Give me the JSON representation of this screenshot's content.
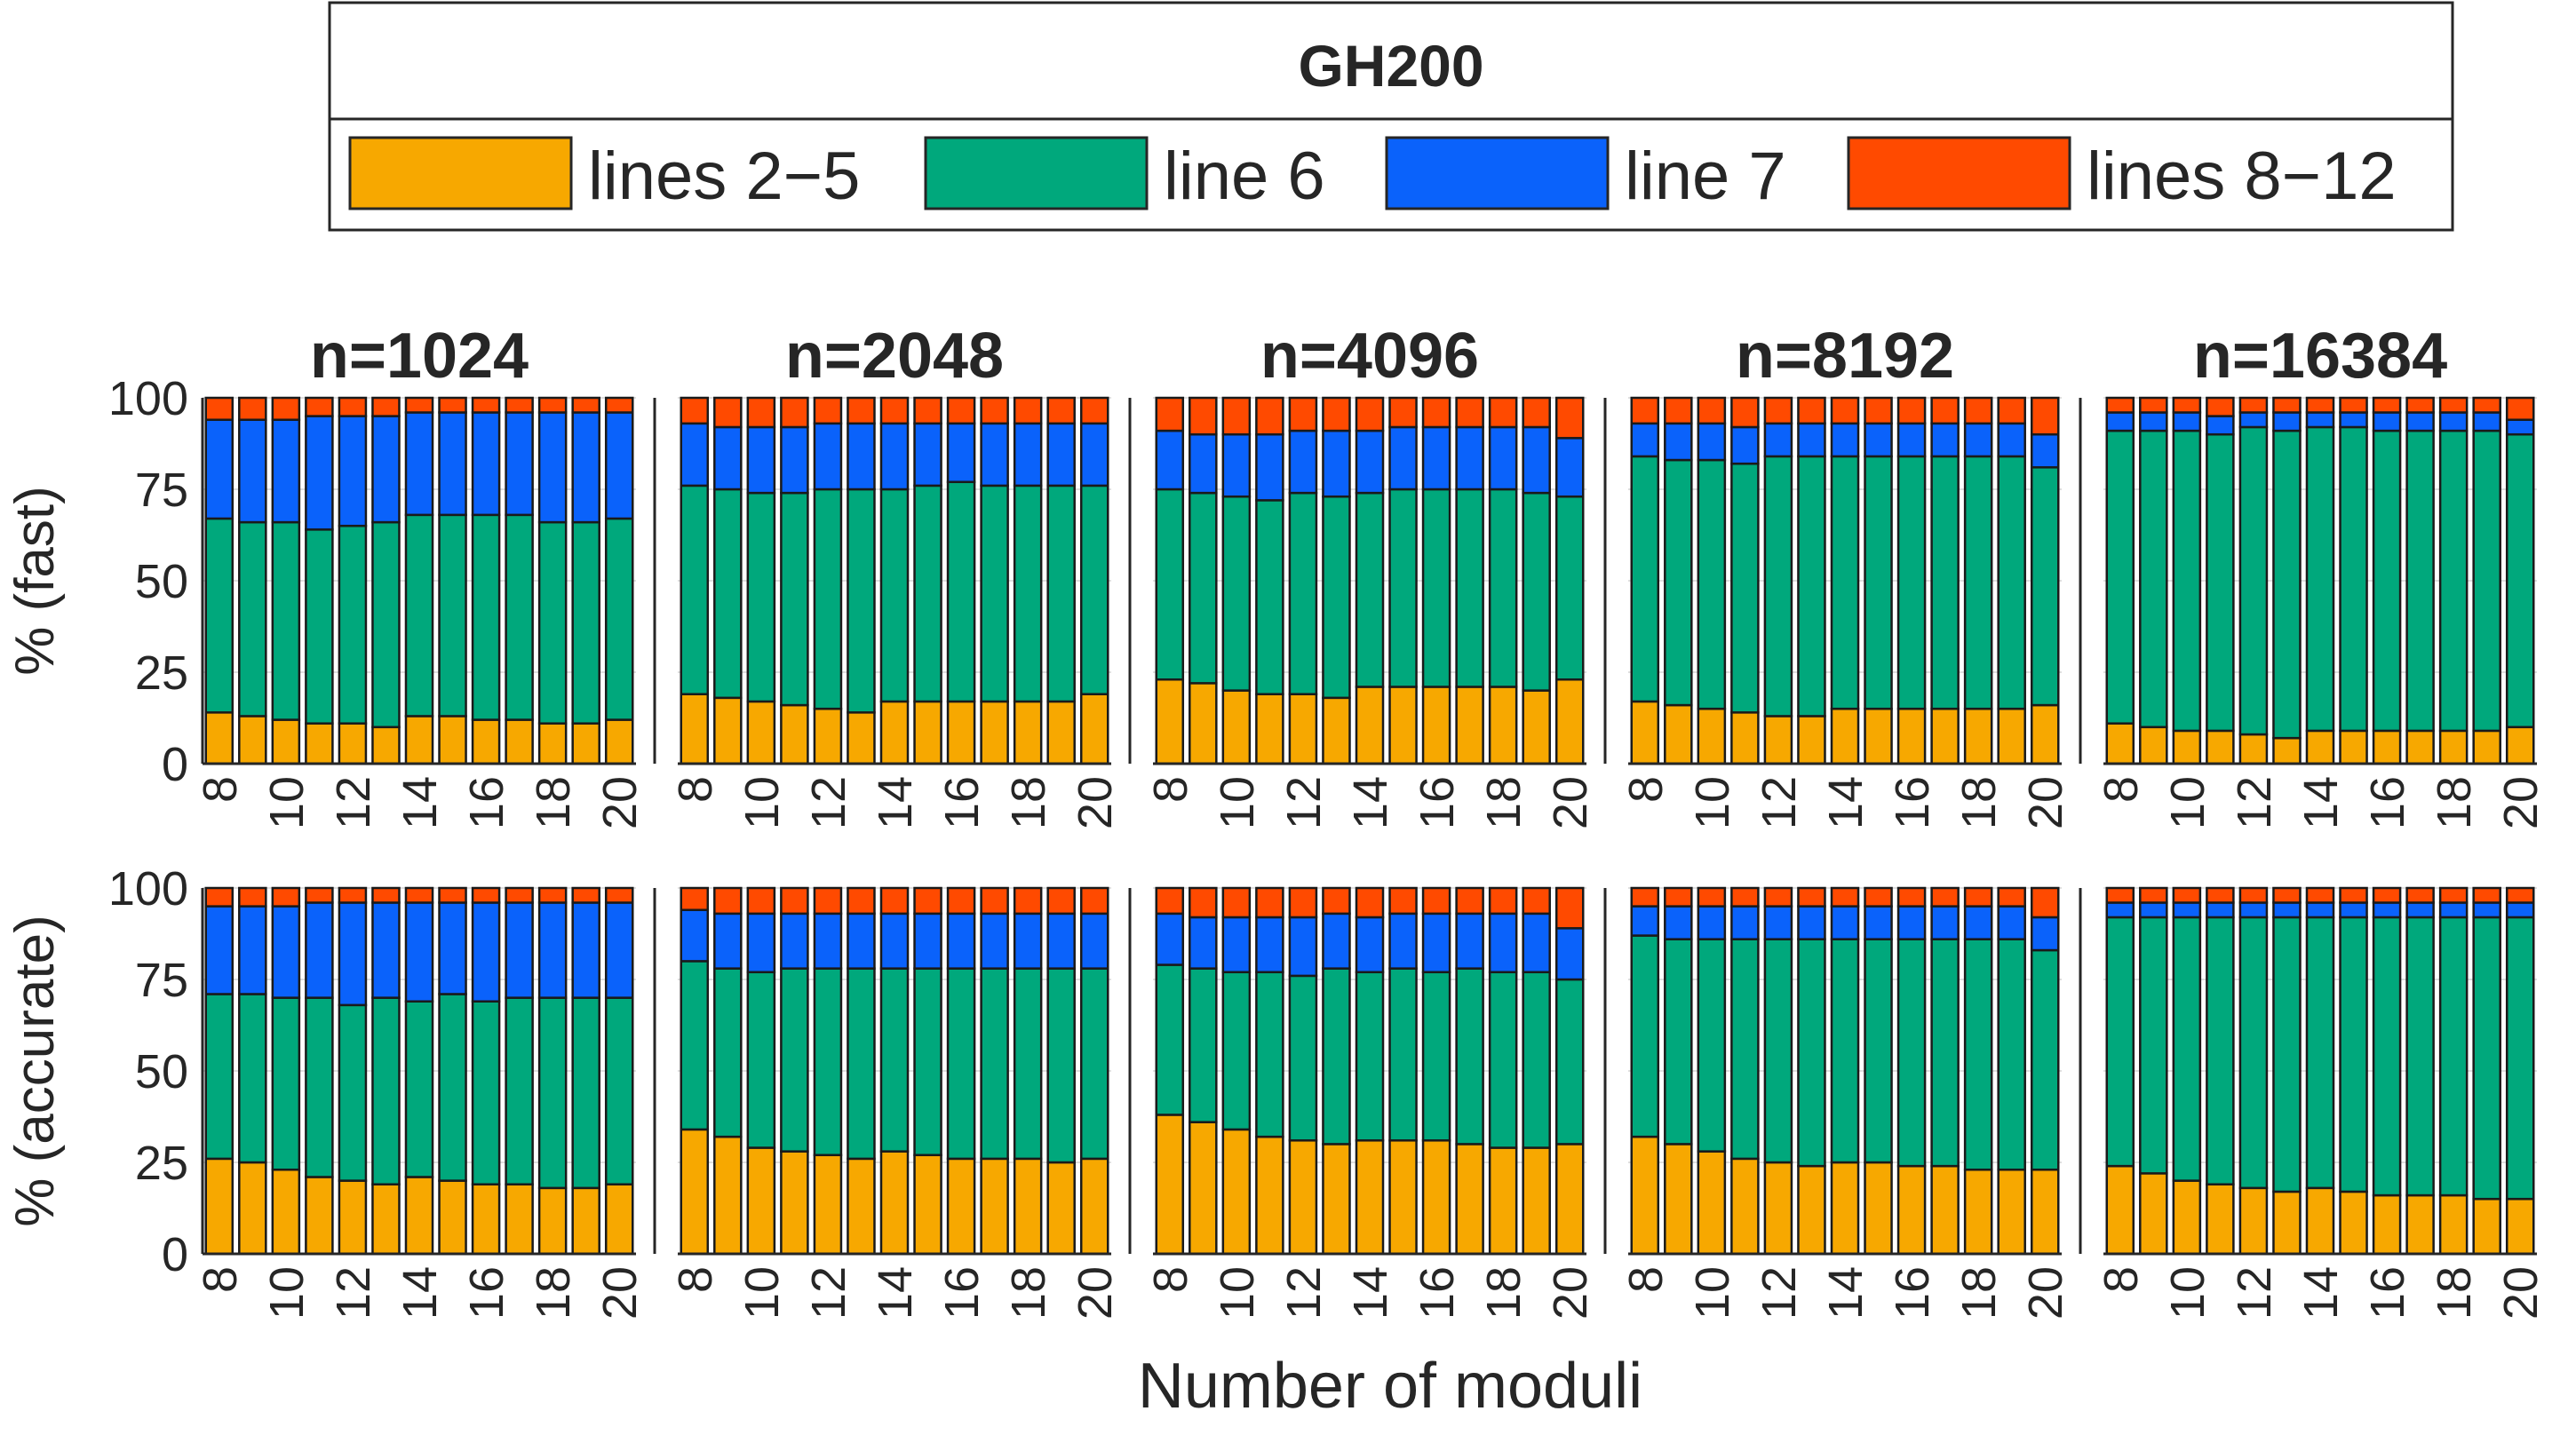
{
  "chart_data": {
    "type": "bar",
    "stacked": true,
    "title": "GH200",
    "legend": {
      "placement": "top",
      "entries": [
        {
          "label": "lines 2−5",
          "color": "#F7A800"
        },
        {
          "label": "line 6",
          "color": "#00A87C"
        },
        {
          "label": "line 7",
          "color": "#0A62FB"
        },
        {
          "label": "lines 8−12",
          "color": "#FF4A00"
        }
      ]
    },
    "xlabel": "Number of moduli",
    "rows": [
      {
        "ylabel": "% (fast)"
      },
      {
        "ylabel": "% (accurate)"
      }
    ],
    "columns": [
      {
        "title": "n=1024"
      },
      {
        "title": "n=2048"
      },
      {
        "title": "n=4096"
      },
      {
        "title": "n=8192"
      },
      {
        "title": "n=16384"
      }
    ],
    "categories": [
      8,
      9,
      10,
      11,
      12,
      13,
      14,
      15,
      16,
      17,
      18,
      19,
      20
    ],
    "xtick_labels": [
      "8",
      "10",
      "12",
      "14",
      "16",
      "18",
      "20"
    ],
    "ylim": [
      0,
      100
    ],
    "yticks": [
      0,
      25,
      50,
      75,
      100
    ],
    "grid": true,
    "series_colors": [
      "#F7A800",
      "#00A87C",
      "#0A62FB",
      "#FF4A00"
    ],
    "panels": [
      [
        {
          "series": [
            {
              "name": "lines 2−5",
              "values": [
                14,
                13,
                12,
                11,
                11,
                10,
                13,
                13,
                12,
                12,
                11,
                11,
                12
              ]
            },
            {
              "name": "line 6",
              "values": [
                53,
                53,
                54,
                53,
                54,
                56,
                55,
                55,
                56,
                56,
                55,
                55,
                55
              ]
            },
            {
              "name": "line 7",
              "values": [
                27,
                28,
                28,
                31,
                30,
                29,
                28,
                28,
                28,
                28,
                30,
                30,
                29
              ]
            },
            {
              "name": "lines 8−12",
              "values": [
                6,
                6,
                6,
                5,
                5,
                5,
                4,
                4,
                4,
                4,
                4,
                4,
                4
              ]
            }
          ]
        },
        {
          "series": [
            {
              "name": "lines 2−5",
              "values": [
                19,
                18,
                17,
                16,
                15,
                14,
                17,
                17,
                17,
                17,
                17,
                17,
                19
              ]
            },
            {
              "name": "line 6",
              "values": [
                57,
                57,
                57,
                58,
                60,
                61,
                58,
                59,
                60,
                59,
                59,
                59,
                57
              ]
            },
            {
              "name": "line 7",
              "values": [
                17,
                17,
                18,
                18,
                18,
                18,
                18,
                17,
                16,
                17,
                17,
                17,
                17
              ]
            },
            {
              "name": "lines 8−12",
              "values": [
                7,
                8,
                8,
                8,
                7,
                7,
                7,
                7,
                7,
                7,
                7,
                7,
                7
              ]
            }
          ]
        },
        {
          "series": [
            {
              "name": "lines 2−5",
              "values": [
                23,
                22,
                20,
                19,
                19,
                18,
                21,
                21,
                21,
                21,
                21,
                20,
                23
              ]
            },
            {
              "name": "line 6",
              "values": [
                52,
                52,
                53,
                53,
                55,
                55,
                53,
                54,
                54,
                54,
                54,
                54,
                50
              ]
            },
            {
              "name": "line 7",
              "values": [
                16,
                16,
                17,
                18,
                17,
                18,
                17,
                17,
                17,
                17,
                17,
                18,
                16
              ]
            },
            {
              "name": "lines 8−12",
              "values": [
                9,
                10,
                10,
                10,
                9,
                9,
                9,
                8,
                8,
                8,
                8,
                8,
                11
              ]
            }
          ]
        },
        {
          "series": [
            {
              "name": "lines 2−5",
              "values": [
                17,
                16,
                15,
                14,
                13,
                13,
                15,
                15,
                15,
                15,
                15,
                15,
                16
              ]
            },
            {
              "name": "line 6",
              "values": [
                67,
                67,
                68,
                68,
                71,
                71,
                69,
                69,
                69,
                69,
                69,
                69,
                65
              ]
            },
            {
              "name": "line 7",
              "values": [
                9,
                10,
                10,
                10,
                9,
                9,
                9,
                9,
                9,
                9,
                9,
                9,
                9
              ]
            },
            {
              "name": "lines 8−12",
              "values": [
                7,
                7,
                7,
                8,
                7,
                7,
                7,
                7,
                7,
                7,
                7,
                7,
                10
              ]
            }
          ]
        },
        {
          "series": [
            {
              "name": "lines 2−5",
              "values": [
                11,
                10,
                9,
                9,
                8,
                7,
                9,
                9,
                9,
                9,
                9,
                9,
                10
              ]
            },
            {
              "name": "line 6",
              "values": [
                80,
                81,
                82,
                81,
                84,
                84,
                83,
                83,
                82,
                82,
                82,
                82,
                80
              ]
            },
            {
              "name": "line 7",
              "values": [
                5,
                5,
                5,
                5,
                4,
                5,
                4,
                4,
                5,
                5,
                5,
                5,
                4
              ]
            },
            {
              "name": "lines 8−12",
              "values": [
                4,
                4,
                4,
                5,
                4,
                4,
                4,
                4,
                4,
                4,
                4,
                4,
                6
              ]
            }
          ]
        }
      ],
      [
        {
          "series": [
            {
              "name": "lines 2−5",
              "values": [
                26,
                25,
                23,
                21,
                20,
                19,
                21,
                20,
                19,
                19,
                18,
                18,
                19
              ]
            },
            {
              "name": "line 6",
              "values": [
                45,
                46,
                47,
                49,
                48,
                51,
                48,
                51,
                50,
                51,
                52,
                52,
                51
              ]
            },
            {
              "name": "line 7",
              "values": [
                24,
                24,
                25,
                26,
                28,
                26,
                27,
                25,
                27,
                26,
                26,
                26,
                26
              ]
            },
            {
              "name": "lines 8−12",
              "values": [
                5,
                5,
                5,
                4,
                4,
                4,
                4,
                4,
                4,
                4,
                4,
                4,
                4
              ]
            }
          ]
        },
        {
          "series": [
            {
              "name": "lines 2−5",
              "values": [
                34,
                32,
                29,
                28,
                27,
                26,
                28,
                27,
                26,
                26,
                26,
                25,
                26
              ]
            },
            {
              "name": "line 6",
              "values": [
                46,
                46,
                48,
                50,
                51,
                52,
                50,
                51,
                52,
                52,
                52,
                53,
                52
              ]
            },
            {
              "name": "line 7",
              "values": [
                14,
                15,
                16,
                15,
                15,
                15,
                15,
                15,
                15,
                15,
                15,
                15,
                15
              ]
            },
            {
              "name": "lines 8−12",
              "values": [
                6,
                7,
                7,
                7,
                7,
                7,
                7,
                7,
                7,
                7,
                7,
                7,
                7
              ]
            }
          ]
        },
        {
          "series": [
            {
              "name": "lines 2−5",
              "values": [
                38,
                36,
                34,
                32,
                31,
                30,
                31,
                31,
                31,
                30,
                29,
                29,
                30
              ]
            },
            {
              "name": "line 6",
              "values": [
                41,
                42,
                43,
                45,
                45,
                48,
                46,
                47,
                46,
                48,
                48,
                48,
                45
              ]
            },
            {
              "name": "line 7",
              "values": [
                14,
                14,
                15,
                15,
                16,
                15,
                15,
                15,
                16,
                15,
                16,
                16,
                14
              ]
            },
            {
              "name": "lines 8−12",
              "values": [
                7,
                8,
                8,
                8,
                8,
                7,
                8,
                7,
                7,
                7,
                7,
                7,
                11
              ]
            }
          ]
        },
        {
          "series": [
            {
              "name": "lines 2−5",
              "values": [
                32,
                30,
                28,
                26,
                25,
                24,
                25,
                25,
                24,
                24,
                23,
                23,
                23
              ]
            },
            {
              "name": "line 6",
              "values": [
                55,
                56,
                58,
                60,
                61,
                62,
                61,
                61,
                62,
                62,
                63,
                63,
                60
              ]
            },
            {
              "name": "line 7",
              "values": [
                8,
                9,
                9,
                9,
                9,
                9,
                9,
                9,
                9,
                9,
                9,
                9,
                9
              ]
            },
            {
              "name": "lines 8−12",
              "values": [
                5,
                5,
                5,
                5,
                5,
                5,
                5,
                5,
                5,
                5,
                5,
                5,
                8
              ]
            }
          ]
        },
        {
          "series": [
            {
              "name": "lines 2−5",
              "values": [
                24,
                22,
                20,
                19,
                18,
                17,
                18,
                17,
                16,
                16,
                16,
                15,
                15
              ]
            },
            {
              "name": "line 6",
              "values": [
                68,
                70,
                72,
                73,
                74,
                75,
                74,
                75,
                76,
                76,
                76,
                77,
                77
              ]
            },
            {
              "name": "line 7",
              "values": [
                4,
                4,
                4,
                4,
                4,
                4,
                4,
                4,
                4,
                4,
                4,
                4,
                4
              ]
            },
            {
              "name": "lines 8−12",
              "values": [
                4,
                4,
                4,
                4,
                4,
                4,
                4,
                4,
                4,
                4,
                4,
                4,
                4
              ]
            }
          ]
        }
      ]
    ]
  }
}
